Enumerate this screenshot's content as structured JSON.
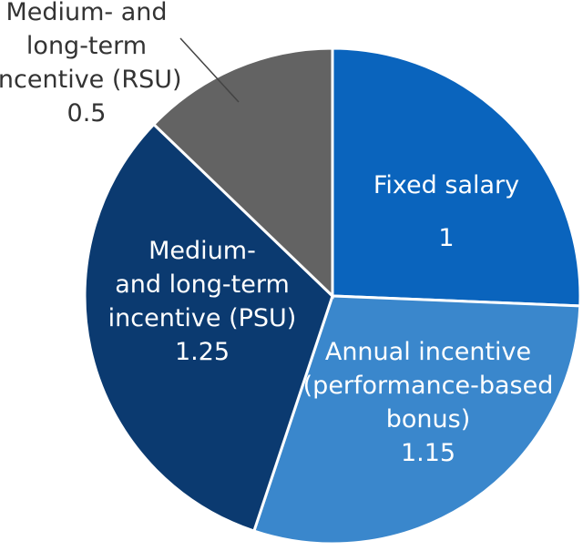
{
  "chart_data": {
    "type": "pie",
    "slices": [
      {
        "label_lines": [
          "Fixed salary"
        ],
        "value": 1,
        "value_label": "1",
        "color": "#0a64bd",
        "text": "white"
      },
      {
        "label_lines": [
          "Annual incentive",
          "(performance-based",
          "bonus)"
        ],
        "value": 1.15,
        "value_label": "1.15",
        "color": "#3a87cc",
        "text": "white"
      },
      {
        "label_lines": [
          "Medium-",
          "and long-term",
          "incentive (PSU)"
        ],
        "value": 1.25,
        "value_label": "1.25",
        "color": "#0b3a70",
        "text": "white"
      },
      {
        "label_lines": [
          "Medium- and",
          "long-term",
          "incentive (RSU)"
        ],
        "value": 0.5,
        "value_label": "0.5",
        "color": "#636363",
        "text": "dark"
      }
    ],
    "start": "12 o'clock",
    "direction": "clockwise"
  }
}
